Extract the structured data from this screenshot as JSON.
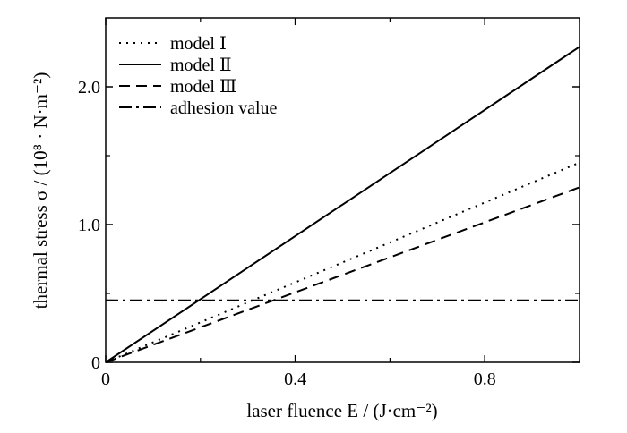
{
  "chart_data": {
    "type": "line",
    "xlabel": "laser fluence E / (J·cm⁻²)",
    "ylabel": "thermal stress σ / (10⁸ · N·m⁻²)",
    "xlim": [
      0,
      1.0
    ],
    "ylim": [
      0,
      2.5
    ],
    "xticks": [
      0,
      0.4,
      0.8
    ],
    "xtick_labels": [
      "0",
      "0.4",
      "0.8"
    ],
    "xminor": [
      0.2,
      0.6,
      1.0
    ],
    "yticks": [
      0,
      1.0,
      2.0
    ],
    "ytick_labels": [
      "0",
      "1.0",
      "2.0"
    ],
    "yminor": [
      0.5,
      1.5
    ],
    "grid": false,
    "legend_position": "top-left",
    "series": [
      {
        "name": "model Ⅰ",
        "style": "dotted",
        "x": [
          0,
          1.0
        ],
        "y": [
          0,
          1.45
        ]
      },
      {
        "name": "model Ⅱ",
        "style": "solid",
        "x": [
          0,
          1.0
        ],
        "y": [
          0,
          2.29
        ]
      },
      {
        "name": "model Ⅲ",
        "style": "dashed",
        "x": [
          0,
          1.0
        ],
        "y": [
          0,
          1.27
        ]
      },
      {
        "name": "adhesion value",
        "style": "dashdot",
        "x": [
          0,
          1.0
        ],
        "y": [
          0.45,
          0.45
        ]
      }
    ]
  },
  "colors": {
    "line": "#000000",
    "background": "#ffffff"
  }
}
